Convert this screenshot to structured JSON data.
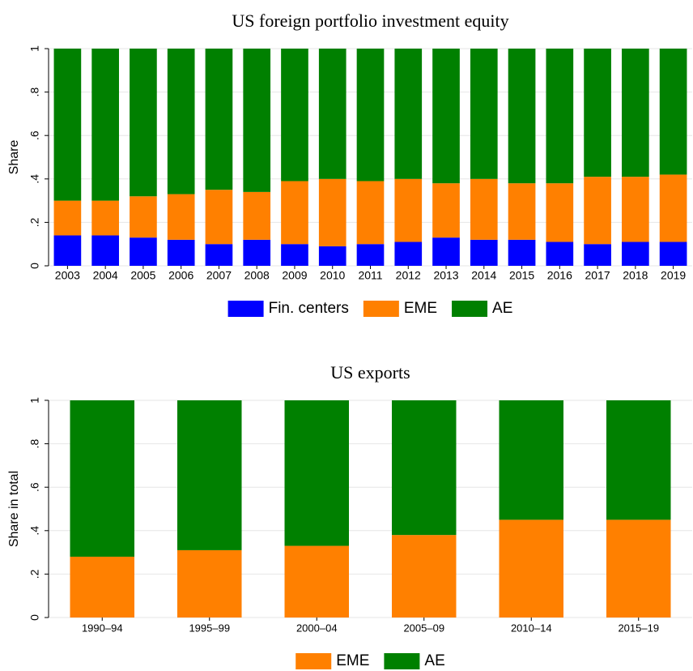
{
  "chart_data": [
    {
      "type": "stacked_bar",
      "title": "US foreign portfolio investment equity",
      "y_label": "Share",
      "categories": [
        "2003",
        "2004",
        "2005",
        "2006",
        "2007",
        "2008",
        "2009",
        "2010",
        "2011",
        "2012",
        "2013",
        "2014",
        "2015",
        "2016",
        "2017",
        "2018",
        "2019"
      ],
      "series": [
        {
          "name": "Fin. centers",
          "color": "#0000ff",
          "values": [
            0.14,
            0.14,
            0.13,
            0.12,
            0.1,
            0.12,
            0.1,
            0.09,
            0.1,
            0.11,
            0.13,
            0.12,
            0.12,
            0.11,
            0.1,
            0.11,
            0.11
          ]
        },
        {
          "name": "EME",
          "color": "#ff8000",
          "values": [
            0.16,
            0.16,
            0.19,
            0.21,
            0.25,
            0.22,
            0.29,
            0.31,
            0.29,
            0.29,
            0.25,
            0.28,
            0.26,
            0.27,
            0.31,
            0.3,
            0.31
          ]
        },
        {
          "name": "AE",
          "color": "#008000",
          "values": [
            0.7,
            0.7,
            0.68,
            0.67,
            0.65,
            0.66,
            0.61,
            0.6,
            0.61,
            0.6,
            0.62,
            0.6,
            0.62,
            0.62,
            0.59,
            0.59,
            0.58
          ]
        }
      ],
      "ylim": [
        0,
        1
      ],
      "yticks": [
        0,
        {
          "value": 0.2,
          "label": ".2"
        },
        {
          "value": 0.4,
          "label": ".4"
        },
        {
          "value": 0.6,
          "label": ".6"
        },
        {
          "value": 0.8,
          "label": ".8"
        },
        1
      ],
      "grid": true,
      "legend": "bottom"
    },
    {
      "type": "stacked_bar",
      "title": "US exports",
      "y_label": "Share in total",
      "categories": [
        "1990–94",
        "1995–99",
        "2000–04",
        "2005–09",
        "2010–14",
        "2015–19"
      ],
      "series": [
        {
          "name": "EME",
          "color": "#ff8000",
          "values": [
            0.28,
            0.31,
            0.33,
            0.38,
            0.45,
            0.45
          ]
        },
        {
          "name": "AE",
          "color": "#008000",
          "values": [
            0.72,
            0.69,
            0.67,
            0.62,
            0.55,
            0.55
          ]
        }
      ],
      "ylim": [
        0,
        1
      ],
      "yticks": [
        0,
        {
          "value": 0.2,
          "label": ".2"
        },
        {
          "value": 0.4,
          "label": ".4"
        },
        {
          "value": 0.6,
          "label": ".6"
        },
        {
          "value": 0.8,
          "label": ".8"
        },
        1
      ],
      "grid": true,
      "legend": "bottom"
    }
  ]
}
